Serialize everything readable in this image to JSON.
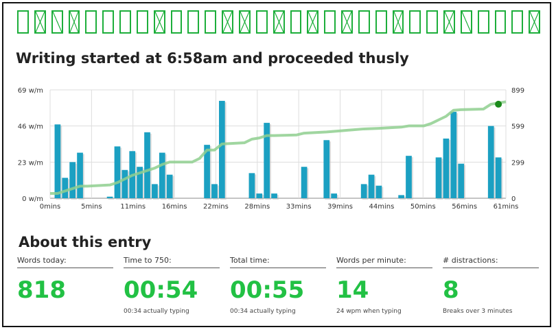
{
  "banner": [
    "box",
    "x",
    "slash",
    "x",
    "box",
    "box",
    "box",
    "box",
    "x",
    "box",
    "box",
    "box",
    "x",
    "x",
    "box",
    "x",
    "box",
    "x",
    "box",
    "x",
    "box",
    "box",
    "x",
    "box",
    "box",
    "x",
    "slash",
    "box",
    "box",
    "box",
    "x"
  ],
  "header": {
    "title": "Writing started at 6:58am and proceeded thusly"
  },
  "section": {
    "title": "About this entry"
  },
  "stats": [
    {
      "label": "Words today:",
      "value": "818",
      "sub": ""
    },
    {
      "label": "Time to 750:",
      "value": "00:54",
      "sub": "00:34 actually typing"
    },
    {
      "label": "Total time:",
      "value": "00:55",
      "sub": "00:34 actually typing"
    },
    {
      "label": "Words per minute:",
      "value": "14",
      "sub": "24 wpm when typing"
    },
    {
      "label": "# distractions:",
      "value": "8",
      "sub": "Breaks over 3 minutes"
    }
  ],
  "colors": {
    "bar": "#1ba0c2",
    "line": "#8fcf8f",
    "accent": "#22c144"
  },
  "chart_data": {
    "type": "bar",
    "x_tick_labels": [
      "0mins",
      "5mins",
      "11mins",
      "16mins",
      "22mins",
      "28mins",
      "33mins",
      "39mins",
      "44mins",
      "50mins",
      "56mins",
      "61mins"
    ],
    "y_left_tick_labels": [
      "0 w/m",
      "23 w/m",
      "46 w/m",
      "69 w/m"
    ],
    "y_right_tick_labels": [
      "0",
      "299",
      "599",
      "899"
    ],
    "xlim": [
      0,
      61
    ],
    "ylim_left": [
      0,
      69
    ],
    "ylim_right": [
      0,
      899
    ],
    "bars": [
      [
        1,
        47
      ],
      [
        2,
        13
      ],
      [
        3,
        23
      ],
      [
        4,
        29
      ],
      [
        8,
        1
      ],
      [
        9,
        33
      ],
      [
        10,
        18
      ],
      [
        11,
        30
      ],
      [
        12,
        20
      ],
      [
        13,
        42
      ],
      [
        14,
        9
      ],
      [
        15,
        29
      ],
      [
        16,
        15
      ],
      [
        21,
        34
      ],
      [
        22,
        9
      ],
      [
        23,
        62
      ],
      [
        27,
        16
      ],
      [
        28,
        3
      ],
      [
        29,
        48
      ],
      [
        30,
        3
      ],
      [
        34,
        20
      ],
      [
        37,
        37
      ],
      [
        38,
        3
      ],
      [
        42,
        9
      ],
      [
        43,
        15
      ],
      [
        44,
        8
      ],
      [
        47,
        2
      ],
      [
        48,
        27
      ],
      [
        52,
        26
      ],
      [
        53,
        38
      ],
      [
        54,
        55
      ],
      [
        55,
        22
      ],
      [
        59,
        46
      ],
      [
        60,
        26
      ]
    ],
    "cumulative_words": [
      [
        0,
        40
      ],
      [
        1,
        40
      ],
      [
        2,
        60
      ],
      [
        3,
        80
      ],
      [
        4,
        100
      ],
      [
        5,
        100
      ],
      [
        8,
        110
      ],
      [
        9,
        130
      ],
      [
        10,
        160
      ],
      [
        11,
        190
      ],
      [
        12,
        210
      ],
      [
        13,
        230
      ],
      [
        14,
        250
      ],
      [
        15,
        280
      ],
      [
        16,
        300
      ],
      [
        18,
        300
      ],
      [
        19,
        300
      ],
      [
        20,
        330
      ],
      [
        21,
        400
      ],
      [
        22,
        400
      ],
      [
        23,
        450
      ],
      [
        26,
        460
      ],
      [
        27,
        490
      ],
      [
        28,
        500
      ],
      [
        29,
        520
      ],
      [
        30,
        520
      ],
      [
        33,
        525
      ],
      [
        34,
        540
      ],
      [
        37,
        550
      ],
      [
        39,
        560
      ],
      [
        42,
        575
      ],
      [
        44,
        580
      ],
      [
        47,
        590
      ],
      [
        48,
        600
      ],
      [
        50,
        600
      ],
      [
        51,
        620
      ],
      [
        52,
        650
      ],
      [
        53,
        680
      ],
      [
        54,
        730
      ],
      [
        55,
        735
      ],
      [
        58,
        740
      ],
      [
        59,
        780
      ],
      [
        61,
        800
      ]
    ],
    "end_point": [
      60,
      780
    ],
    "grid": true
  }
}
